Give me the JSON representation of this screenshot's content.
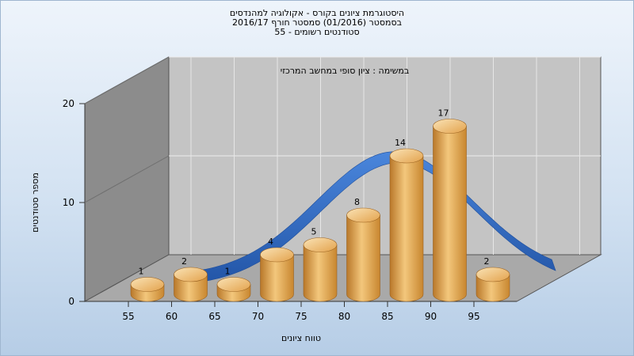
{
  "chart_data": {
    "type": "bar",
    "title_lines": [
      "היסטוגרמת ציונים בקורס - אקולוגיה למהנדסים",
      "בסמסטר  (01/2016)  סמסטר חורף  2016/17",
      "סטודנטים רשומים - 55"
    ],
    "annotation": "במשימה : ציון סופי במחשב המרכזי",
    "xlabel": "טווח ציונים",
    "ylabel": "מספר סטודנטים",
    "categories": [
      "55",
      "60",
      "65",
      "70",
      "75",
      "80",
      "85",
      "90",
      "95"
    ],
    "values": [
      1,
      2,
      1,
      4,
      5,
      8,
      14,
      17,
      2
    ],
    "ylim": [
      0,
      20
    ],
    "yticks": [
      0,
      10,
      20
    ],
    "grid": true,
    "curve": "distribution-ribbon",
    "colors": {
      "bar": "#e8a951",
      "bar_top": "#f6d49a",
      "curve": "#2f6bc4",
      "back_wall": "#bdbdbd",
      "side_wall": "#8a8a8a",
      "floor": "#a8a8a8"
    }
  }
}
